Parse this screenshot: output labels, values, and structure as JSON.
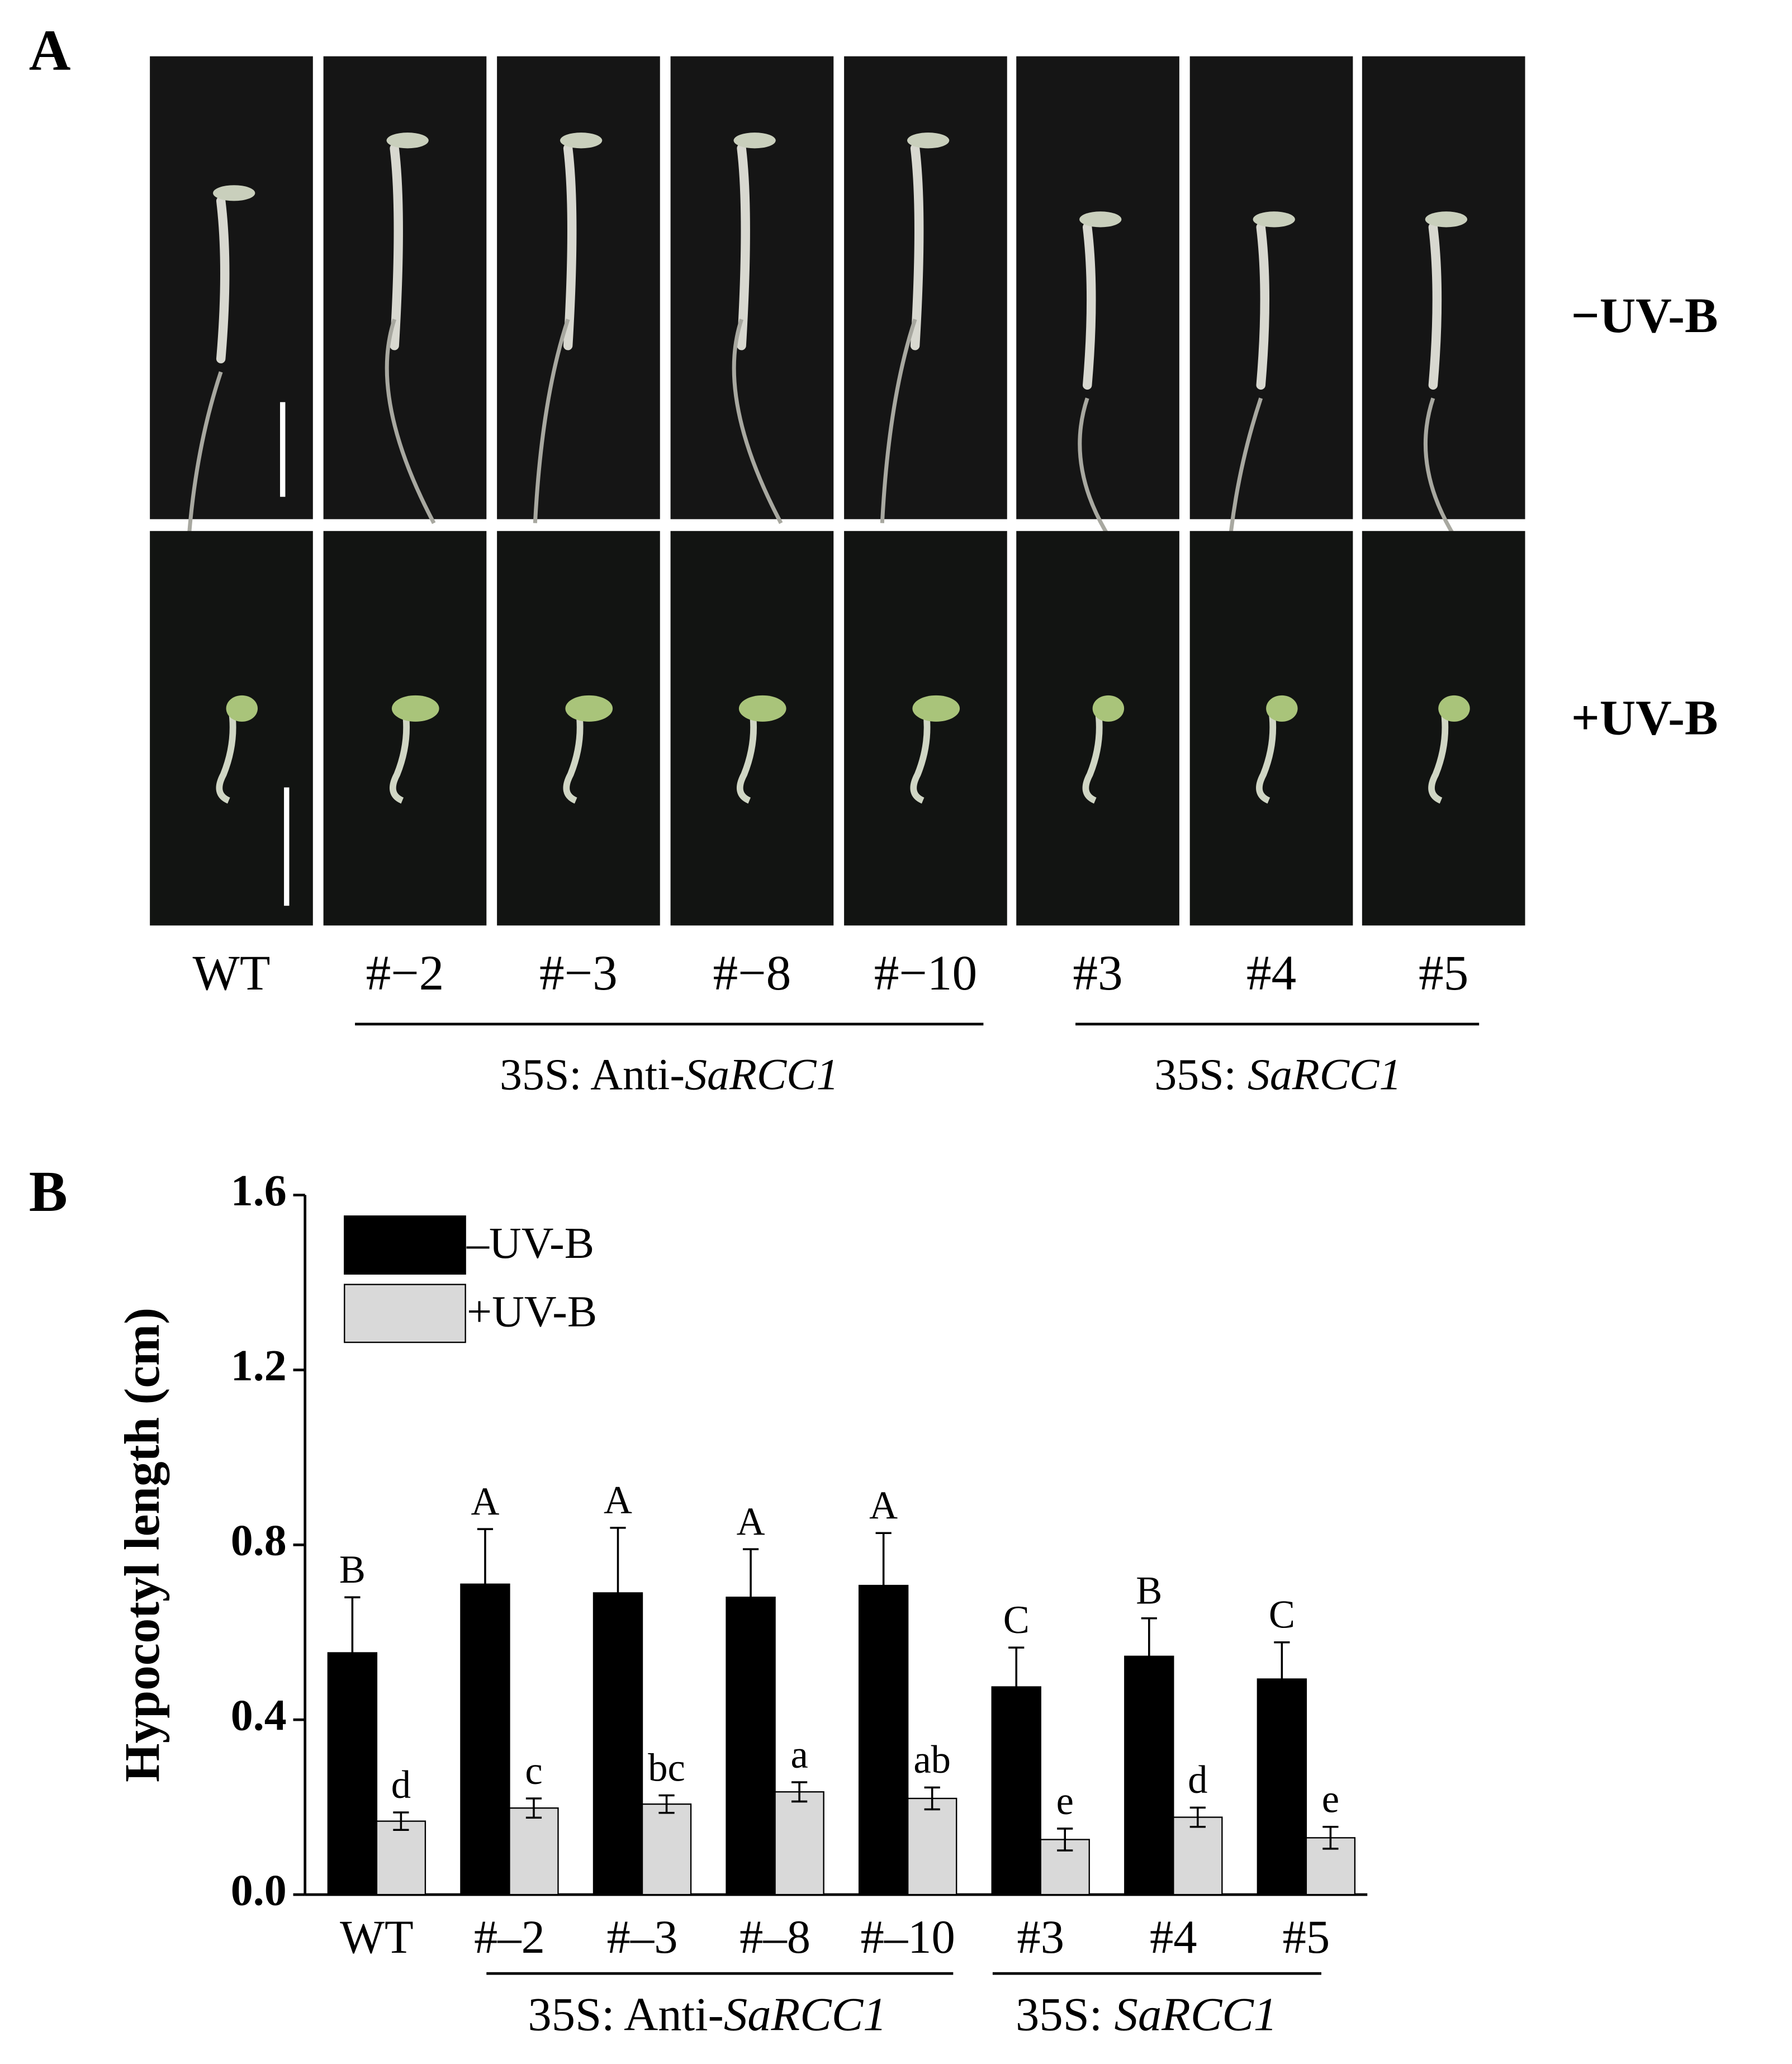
{
  "panel_a": {
    "label": "A",
    "rows": [
      "−UV-B",
      "+UV-B"
    ],
    "columns": [
      "WT",
      "#−2",
      "#−3",
      "#−8",
      "#−10",
      "#3",
      "#4",
      "#5"
    ],
    "groups": [
      {
        "prefix": "35S: Anti-",
        "italic": "SaRCC1"
      },
      {
        "prefix": "35S: ",
        "italic": "SaRCC1"
      }
    ]
  },
  "chart_data": {
    "type": "bar",
    "panel_label": "B",
    "y_label": "Hypocotyl length (cm)",
    "categories": [
      "WT",
      "#–2",
      "#–3",
      "#–8",
      "#–10",
      "#3",
      "#4",
      "#5"
    ],
    "groups": [
      {
        "prefix": "35S: Anti-",
        "italic": "SaRCC1"
      },
      {
        "prefix": "35S: ",
        "italic": "SaRCC1"
      }
    ],
    "series": [
      {
        "name": "–UV-B",
        "color": "#000000",
        "values": [
          0.553,
          0.71,
          0.69,
          0.68,
          0.707,
          0.475,
          0.545,
          0.493
        ],
        "errors": [
          0.127,
          0.126,
          0.149,
          0.11,
          0.12,
          0.09,
          0.087,
          0.084
        ],
        "letters": [
          "B",
          "A",
          "A",
          "A",
          "A",
          "C",
          "B",
          "C"
        ]
      },
      {
        "name": "+UV-B",
        "color": "#d9d9d9",
        "values": [
          0.168,
          0.198,
          0.207,
          0.235,
          0.22,
          0.126,
          0.177,
          0.13
        ],
        "errors": [
          0.02,
          0.022,
          0.02,
          0.022,
          0.025,
          0.025,
          0.022,
          0.025
        ],
        "letters": [
          "d",
          "c",
          "bc",
          "a",
          "ab",
          "e",
          "d",
          "e"
        ]
      }
    ],
    "ylim": [
      0,
      1.6
    ],
    "yticks": [
      {
        "value": 0,
        "label": "0.0"
      },
      0.4,
      0.8,
      1.2,
      1.6
    ],
    "legend": "upper-left"
  }
}
